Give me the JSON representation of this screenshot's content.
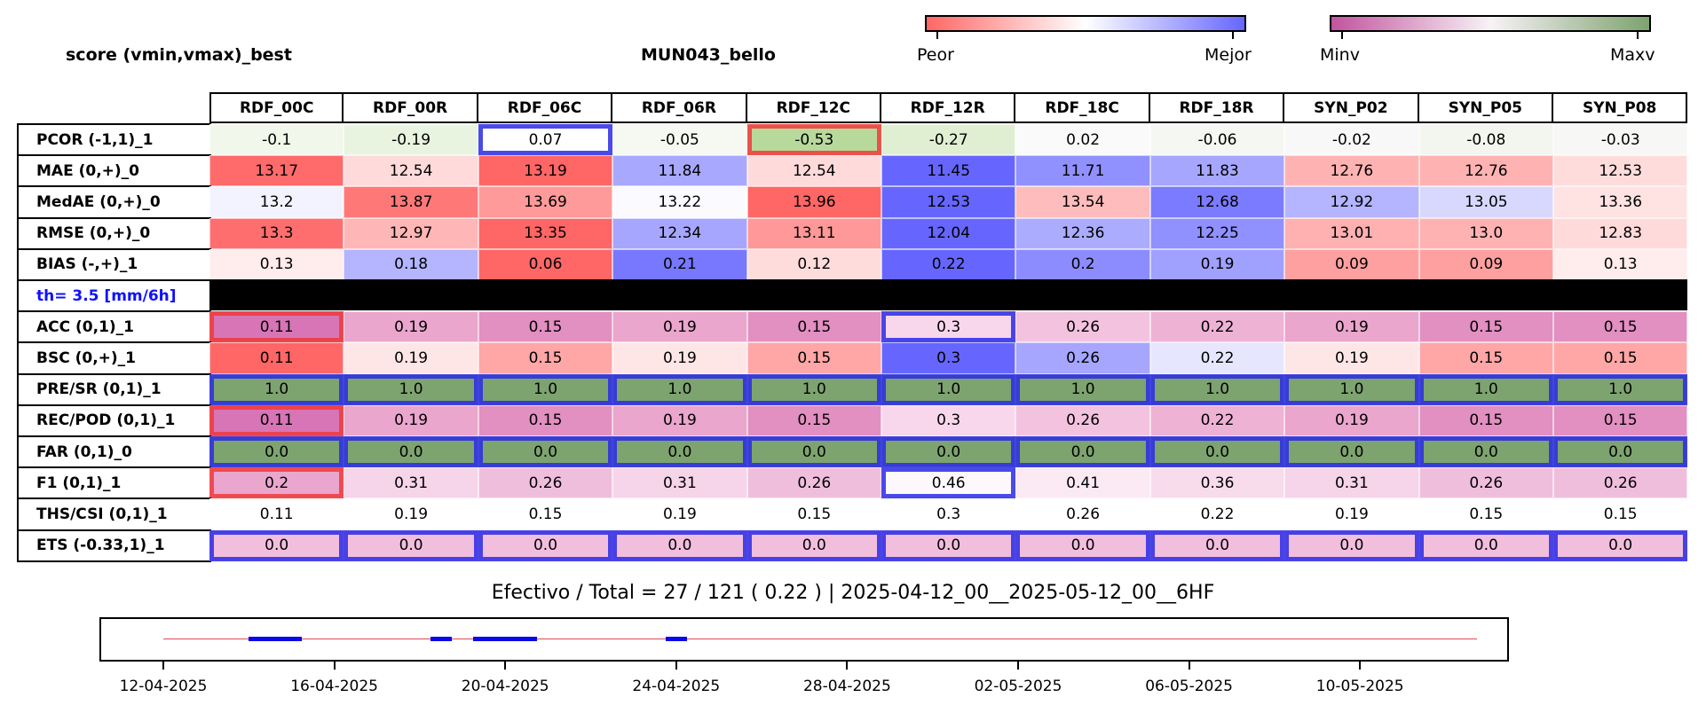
{
  "header": {
    "left_title": "score (vmin,vmax)_best",
    "center_title": "MUN043_bello"
  },
  "colorbars": [
    {
      "left_label": "Peor",
      "right_label": "Mejor",
      "colors": [
        "#ff6666",
        "#ffffff",
        "#6666ff"
      ]
    },
    {
      "left_label": "Minv",
      "right_label": "Maxv",
      "colors": [
        "#c2549e",
        "#f8f2f6",
        "#7da36f"
      ]
    }
  ],
  "columns": [
    "RDF_00C",
    "RDF_00R",
    "RDF_06C",
    "RDF_06R",
    "RDF_12C",
    "RDF_12R",
    "RDF_18C",
    "RDF_18R",
    "SYN_P02",
    "SYN_P05",
    "SYN_P08"
  ],
  "rows": [
    {
      "label": "PCOR (-1,1)_1",
      "values": [
        "-0.1",
        "-0.19",
        "0.07",
        "-0.05",
        "-0.53",
        "-0.27",
        "0.02",
        "-0.06",
        "-0.02",
        "-0.08",
        "-0.03"
      ],
      "colors": [
        "#f1f7eb",
        "#e9f4e0",
        "#ffffff",
        "#f5f9f1",
        "#b8d99c",
        "#e0efd2",
        "#fafafa",
        "#f5f7f2",
        "#f8f8f8",
        "#f2f6ee",
        "#f7f8f6"
      ],
      "highlights": [
        {
          "col": 2,
          "color": "blue"
        },
        {
          "col": 4,
          "color": "red"
        }
      ]
    },
    {
      "label": "MAE (0,+)_0",
      "values": [
        "13.17",
        "12.54",
        "13.19",
        "11.84",
        "12.54",
        "11.45",
        "11.71",
        "11.83",
        "12.76",
        "12.76",
        "12.53"
      ],
      "colors": [
        "#ff6a6a",
        "#ffdada",
        "#ff6666",
        "#a8a8ff",
        "#ffdada",
        "#6666ff",
        "#9090ff",
        "#a6a6ff",
        "#ffb2b2",
        "#ffb2b2",
        "#ffdcdc"
      ],
      "highlights": []
    },
    {
      "label": "MedAE (0,+)_0",
      "values": [
        "13.2",
        "13.87",
        "13.69",
        "13.22",
        "13.96",
        "12.53",
        "13.54",
        "12.68",
        "12.92",
        "13.05",
        "13.36"
      ],
      "colors": [
        "#f3f3ff",
        "#ff7878",
        "#ff9a9a",
        "#fafaff",
        "#ff6666",
        "#6666ff",
        "#ffbcbc",
        "#7b7bff",
        "#b4b4ff",
        "#d8d8ff",
        "#ffe2e2"
      ],
      "highlights": []
    },
    {
      "label": "RMSE (0,+)_0",
      "values": [
        "13.3",
        "12.97",
        "13.35",
        "12.34",
        "13.11",
        "12.04",
        "12.36",
        "12.25",
        "13.01",
        "13.0",
        "12.83"
      ],
      "colors": [
        "#ff6e6e",
        "#ffb6b6",
        "#ff6666",
        "#a6a6ff",
        "#ff9898",
        "#6666ff",
        "#acacff",
        "#9090ff",
        "#ffb0b0",
        "#ffb2b2",
        "#ffdada"
      ],
      "highlights": []
    },
    {
      "label": "BIAS (-,+)_1",
      "values": [
        "0.13",
        "0.18",
        "0.06",
        "0.21",
        "0.12",
        "0.22",
        "0.2",
        "0.19",
        "0.09",
        "0.09",
        "0.13"
      ],
      "colors": [
        "#ffecec",
        "#b4b4ff",
        "#ff6666",
        "#7878ff",
        "#ffdcdc",
        "#6666ff",
        "#8c8cff",
        "#a0a0ff",
        "#ffa0a0",
        "#ffa0a0",
        "#ffecec"
      ],
      "highlights": []
    },
    {
      "label": "th= 3.5 [mm/6h]",
      "separator": true
    },
    {
      "label": "ACC (0,1)_1",
      "values": [
        "0.11",
        "0.19",
        "0.15",
        "0.19",
        "0.15",
        "0.3",
        "0.26",
        "0.22",
        "0.19",
        "0.15",
        "0.15"
      ],
      "colors": [
        "#d875b6",
        "#eaa6cd",
        "#e28fc1",
        "#eaa6cd",
        "#e28fc1",
        "#f8d7ec",
        "#f3c2df",
        "#eeb2d5",
        "#eaa6cd",
        "#e28fc1",
        "#e28fc1"
      ],
      "highlights": [
        {
          "col": 0,
          "color": "red"
        },
        {
          "col": 5,
          "color": "blue"
        }
      ]
    },
    {
      "label": "BSC (0,+)_1",
      "values": [
        "0.11",
        "0.19",
        "0.15",
        "0.19",
        "0.15",
        "0.3",
        "0.26",
        "0.22",
        "0.19",
        "0.15",
        "0.15"
      ],
      "colors": [
        "#ff6666",
        "#ffe6e6",
        "#ffa6a6",
        "#ffe6e6",
        "#ffa6a6",
        "#6666ff",
        "#a6a6ff",
        "#e6e6ff",
        "#ffe6e6",
        "#ffa6a6",
        "#ffa6a6"
      ],
      "highlights": []
    },
    {
      "label": "PRE/SR (0,1)_1",
      "values": [
        "1.0",
        "1.0",
        "1.0",
        "1.0",
        "1.0",
        "1.0",
        "1.0",
        "1.0",
        "1.0",
        "1.0",
        "1.0"
      ],
      "colors": [
        "#7da36f",
        "#7da36f",
        "#7da36f",
        "#7da36f",
        "#7da36f",
        "#7da36f",
        "#7da36f",
        "#7da36f",
        "#7da36f",
        "#7da36f",
        "#7da36f"
      ],
      "highlights": "all-blue"
    },
    {
      "label": "REC/POD (0,1)_1",
      "values": [
        "0.11",
        "0.19",
        "0.15",
        "0.19",
        "0.15",
        "0.3",
        "0.26",
        "0.22",
        "0.19",
        "0.15",
        "0.15"
      ],
      "colors": [
        "#d875b6",
        "#eaa6cd",
        "#e28fc1",
        "#eaa6cd",
        "#e28fc1",
        "#f8d7ec",
        "#f3c2df",
        "#eeb2d5",
        "#eaa6cd",
        "#e28fc1",
        "#e28fc1"
      ],
      "highlights": [
        {
          "col": 0,
          "color": "red"
        }
      ]
    },
    {
      "label": "FAR (0,1)_0",
      "values": [
        "0.0",
        "0.0",
        "0.0",
        "0.0",
        "0.0",
        "0.0",
        "0.0",
        "0.0",
        "0.0",
        "0.0",
        "0.0"
      ],
      "colors": [
        "#7da36f",
        "#7da36f",
        "#7da36f",
        "#7da36f",
        "#7da36f",
        "#7da36f",
        "#7da36f",
        "#7da36f",
        "#7da36f",
        "#7da36f",
        "#7da36f"
      ],
      "highlights": "all-blue"
    },
    {
      "label": "F1 (0,1)_1",
      "values": [
        "0.2",
        "0.31",
        "0.26",
        "0.31",
        "0.26",
        "0.46",
        "0.41",
        "0.36",
        "0.31",
        "0.26",
        "0.26"
      ],
      "colors": [
        "#eaa6cd",
        "#f6d4e9",
        "#f0bedd",
        "#f6d4e9",
        "#f0bedd",
        "#fdf8fb",
        "#fbe9f4",
        "#f8dcec",
        "#f6d4e9",
        "#f0bedd",
        "#f0bedd"
      ],
      "highlights": [
        {
          "col": 0,
          "color": "red"
        },
        {
          "col": 5,
          "color": "blue"
        }
      ]
    },
    {
      "label": "THS/CSI (0,1)_1",
      "values": [
        "0.11",
        "0.19",
        "0.15",
        "0.19",
        "0.15",
        "0.3",
        "0.26",
        "0.22",
        "0.19",
        "0.15",
        "0.15"
      ],
      "colors": [
        "#ffffff",
        "#ffffff",
        "#ffffff",
        "#ffffff",
        "#ffffff",
        "#ffffff",
        "#ffffff",
        "#ffffff",
        "#ffffff",
        "#ffffff",
        "#ffffff"
      ],
      "highlights": []
    },
    {
      "label": "ETS (-0.33,1)_1",
      "values": [
        "0.0",
        "0.0",
        "0.0",
        "0.0",
        "0.0",
        "0.0",
        "0.0",
        "0.0",
        "0.0",
        "0.0",
        "0.0"
      ],
      "colors": [
        "#f1bedd",
        "#f1bedd",
        "#f1bedd",
        "#f1bedd",
        "#f1bedd",
        "#f1bedd",
        "#f1bedd",
        "#f1bedd",
        "#f1bedd",
        "#f1bedd",
        "#f1bedd"
      ],
      "highlights": "all-blue"
    }
  ],
  "highlight_colors": {
    "blue": "#2a2ae6",
    "red": "#f03a3a"
  },
  "footer": {
    "text": "Efectivo / Total  =  27 / 121 ( 0.22 ) | 2025-04-12_00__2025-05-12_00__6HF"
  },
  "chart_data": {
    "type": "table",
    "timeline": {
      "x_start": "2025-04-12",
      "x_end": "2025-05-12",
      "tick_labels": [
        "12-04-2025",
        "16-04-2025",
        "20-04-2025",
        "24-04-2025",
        "28-04-2025",
        "02-05-2025",
        "06-05-2025",
        "10-05-2025"
      ],
      "tick_dates": [
        "2025-04-12",
        "2025-04-16",
        "2025-04-20",
        "2025-04-24",
        "2025-04-28",
        "2025-05-02",
        "2025-05-06",
        "2025-05-10"
      ],
      "line_color": "#e04a5a",
      "segment_color": "#0a0ae8",
      "effective_segments": [
        [
          "2025-04-14",
          "2025-04-15.25"
        ],
        [
          "2025-04-18.25",
          "2025-04-18.75"
        ],
        [
          "2025-04-19.25",
          "2025-04-20.75"
        ],
        [
          "2025-04-23.75",
          "2025-04-24.25"
        ]
      ]
    }
  }
}
